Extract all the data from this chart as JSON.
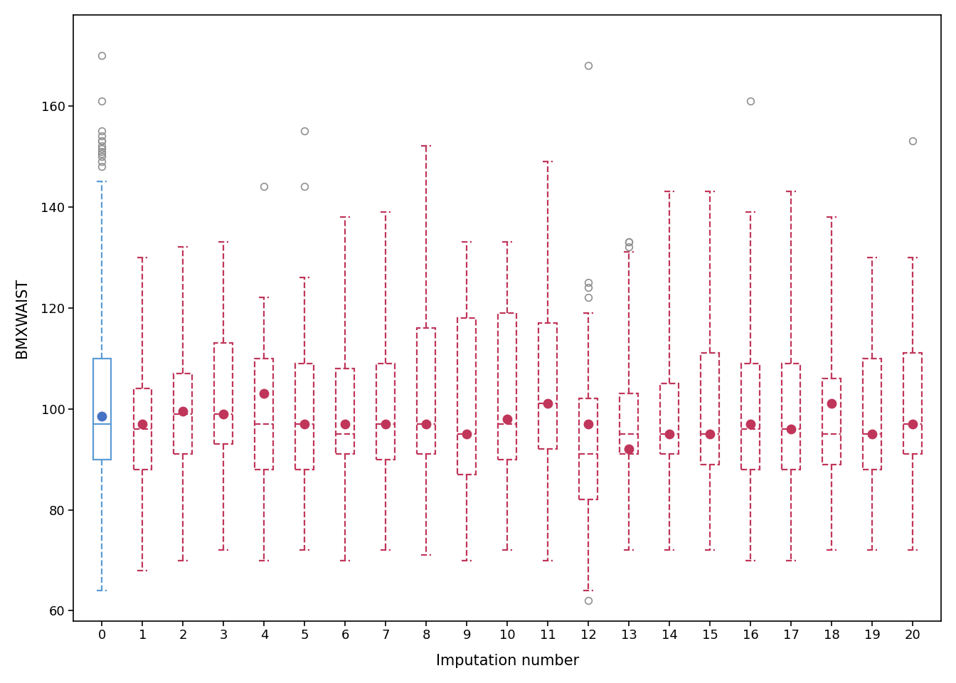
{
  "title": "",
  "xlabel": "Imputation number",
  "ylabel": "BMXWAIST",
  "ylim": [
    58,
    178
  ],
  "xlim": [
    -0.7,
    20.7
  ],
  "box0_color": "#5B9BD5",
  "imputed_color": "#C0365A",
  "outlier_color": "#909090",
  "mean_color_0": "#4472C4",
  "background_color": "#ffffff",
  "box_width": 0.45,
  "boxes": [
    {
      "q1": 90,
      "median": 97,
      "q3": 110,
      "whislo": 64,
      "whishi": 145,
      "mean": 98.5,
      "outliers": [
        148,
        149,
        150,
        150.5,
        151,
        151.5,
        152,
        153,
        153,
        154,
        155,
        161,
        170
      ]
    },
    {
      "q1": 88,
      "median": 96,
      "q3": 104,
      "whislo": 68,
      "whishi": 130,
      "mean": 97,
      "outliers": []
    },
    {
      "q1": 91,
      "median": 99,
      "q3": 107,
      "whislo": 70,
      "whishi": 132,
      "mean": 99.5,
      "outliers": []
    },
    {
      "q1": 93,
      "median": 99,
      "q3": 113,
      "whislo": 72,
      "whishi": 133,
      "mean": 99,
      "outliers": []
    },
    {
      "q1": 88,
      "median": 97,
      "q3": 110,
      "whislo": 70,
      "whishi": 122,
      "mean": 103,
      "outliers": [
        144
      ]
    },
    {
      "q1": 88,
      "median": 97,
      "q3": 109,
      "whislo": 72,
      "whishi": 126,
      "mean": 97,
      "outliers": [
        144,
        155
      ]
    },
    {
      "q1": 91,
      "median": 95,
      "q3": 108,
      "whislo": 70,
      "whishi": 138,
      "mean": 97,
      "outliers": []
    },
    {
      "q1": 90,
      "median": 97,
      "q3": 109,
      "whislo": 72,
      "whishi": 139,
      "mean": 97,
      "outliers": []
    },
    {
      "q1": 91,
      "median": 97,
      "q3": 116,
      "whislo": 71,
      "whishi": 152,
      "mean": 97,
      "outliers": []
    },
    {
      "q1": 87,
      "median": 95,
      "q3": 118,
      "whislo": 70,
      "whishi": 133,
      "mean": 95,
      "outliers": []
    },
    {
      "q1": 90,
      "median": 97,
      "q3": 119,
      "whislo": 72,
      "whishi": 133,
      "mean": 98,
      "outliers": []
    },
    {
      "q1": 92,
      "median": 101,
      "q3": 117,
      "whislo": 70,
      "whishi": 149,
      "mean": 101,
      "outliers": []
    },
    {
      "q1": 82,
      "median": 91,
      "q3": 102,
      "whislo": 64,
      "whishi": 119,
      "mean": 97,
      "outliers": [
        62,
        122,
        124,
        125,
        168
      ]
    },
    {
      "q1": 91,
      "median": 95,
      "q3": 103,
      "whislo": 72,
      "whishi": 131,
      "mean": 92,
      "outliers": [
        132,
        133,
        133
      ]
    },
    {
      "q1": 91,
      "median": 95,
      "q3": 105,
      "whislo": 72,
      "whishi": 143,
      "mean": 95,
      "outliers": []
    },
    {
      "q1": 89,
      "median": 95,
      "q3": 111,
      "whislo": 72,
      "whishi": 143,
      "mean": 95,
      "outliers": []
    },
    {
      "q1": 88,
      "median": 96,
      "q3": 109,
      "whislo": 70,
      "whishi": 139,
      "mean": 97,
      "outliers": [
        161
      ]
    },
    {
      "q1": 88,
      "median": 96,
      "q3": 109,
      "whislo": 70,
      "whishi": 143,
      "mean": 96,
      "outliers": []
    },
    {
      "q1": 89,
      "median": 95,
      "q3": 106,
      "whislo": 72,
      "whishi": 138,
      "mean": 101,
      "outliers": []
    },
    {
      "q1": 88,
      "median": 95,
      "q3": 110,
      "whislo": 72,
      "whishi": 130,
      "mean": 95,
      "outliers": []
    },
    {
      "q1": 91,
      "median": 97,
      "q3": 111,
      "whislo": 72,
      "whishi": 130,
      "mean": 97,
      "outliers": [
        153
      ]
    }
  ],
  "yticks": [
    60,
    80,
    100,
    120,
    140,
    160
  ],
  "xticks": [
    0,
    1,
    2,
    3,
    4,
    5,
    6,
    7,
    8,
    9,
    10,
    11,
    12,
    13,
    14,
    15,
    16,
    17,
    18,
    19,
    20
  ]
}
